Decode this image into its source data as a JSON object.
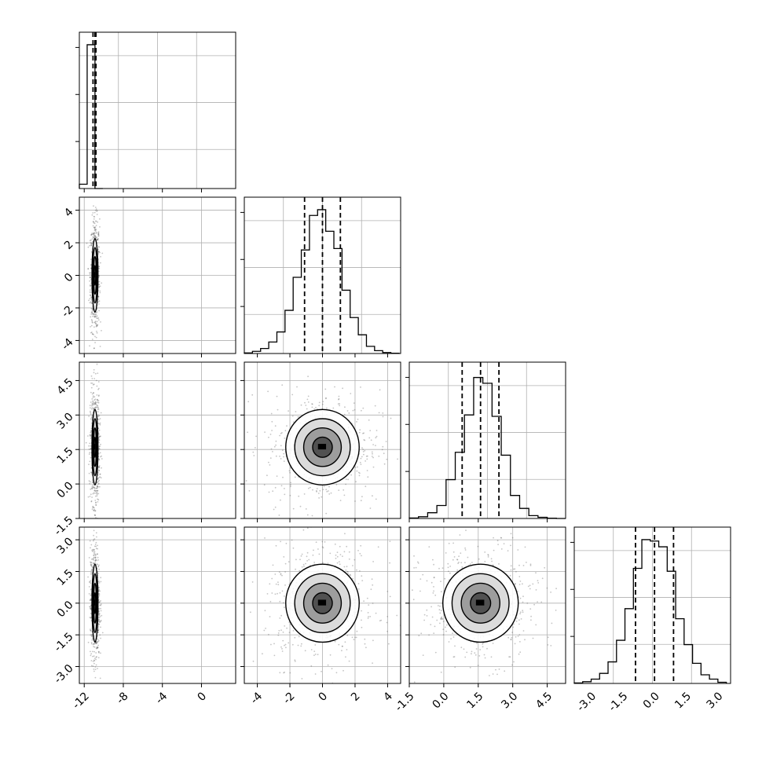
{
  "chart_data": {
    "type": "corner",
    "title": "",
    "parameters": 4,
    "axis_labels": [
      "",
      "",
      "",
      ""
    ],
    "ranges": [
      [
        -12.5,
        3.5
      ],
      [
        -4.8,
        4.8
      ],
      [
        -1.5,
        5.3
      ],
      [
        -3.8,
        3.6
      ]
    ],
    "x_ticks": [
      [
        "-12",
        "-8",
        "-4",
        "0"
      ],
      [
        "-4",
        "-2",
        "0",
        "2",
        "4"
      ],
      [
        "-1.5",
        "0.0",
        "1.5",
        "3.0",
        "4.5"
      ],
      [
        "-3.0",
        "-1.5",
        "0.0",
        "1.5",
        "3.0"
      ]
    ],
    "x_tick_values": [
      [
        -12,
        -8,
        -4,
        0
      ],
      [
        -4,
        -2,
        0,
        2,
        4
      ],
      [
        -1.5,
        0.0,
        1.5,
        3.0,
        4.5
      ],
      [
        -3.0,
        -1.5,
        0.0,
        1.5,
        3.0
      ]
    ],
    "y_ticks": [
      null,
      [
        "4",
        "2",
        "0",
        "-2",
        "-4"
      ],
      [
        "4.5",
        "3.0",
        "1.5",
        "0.0",
        "-1.5"
      ],
      [
        "3.0",
        "1.5",
        "0.0",
        "-1.5",
        "-3.0"
      ]
    ],
    "y_tick_values": [
      null,
      [
        4,
        2,
        0,
        -2,
        -4
      ],
      [
        4.5,
        3.0,
        1.5,
        0.0,
        -1.5
      ],
      [
        3.0,
        1.5,
        0.0,
        -1.5,
        -3.0
      ]
    ],
    "means": [
      -10.9,
      0.0,
      1.6,
      0.0
    ],
    "sigmas": [
      0.15,
      1.1,
      0.8,
      0.9
    ],
    "quantiles": [
      [
        -11.1,
        -10.9,
        -10.8
      ],
      [
        -1.1,
        0.0,
        1.1
      ],
      [
        0.8,
        1.6,
        2.4
      ],
      [
        -0.9,
        0.0,
        0.9
      ]
    ],
    "histograms": [
      {
        "bin_edges": [
          -12.5,
          -11.7,
          -10.9,
          -10.1
        ],
        "counts": [
          0.03,
          1.0,
          0.0
        ]
      },
      {
        "bin_edges": [
          -4.8,
          -4.3,
          -3.8,
          -3.3,
          -2.8,
          -2.3,
          -1.8,
          -1.3,
          -0.8,
          -0.3,
          0.2,
          0.7,
          1.2,
          1.7,
          2.2,
          2.7,
          3.2,
          3.7,
          4.2,
          4.7
        ],
        "counts": [
          0.004,
          0.015,
          0.035,
          0.08,
          0.15,
          0.3,
          0.53,
          0.72,
          0.96,
          1.0,
          0.85,
          0.73,
          0.44,
          0.25,
          0.13,
          0.05,
          0.02,
          0.007,
          0.002
        ]
      },
      {
        "bin_edges": [
          -1.5,
          -1.1,
          -0.7,
          -0.3,
          0.1,
          0.5,
          0.9,
          1.3,
          1.7,
          2.1,
          2.5,
          2.9,
          3.3,
          3.7,
          4.1,
          4.5,
          4.9,
          5.3
        ],
        "counts": [
          0.003,
          0.012,
          0.04,
          0.09,
          0.27,
          0.46,
          0.72,
          0.98,
          0.94,
          0.71,
          0.44,
          0.16,
          0.07,
          0.02,
          0.008,
          0.002,
          0.0
        ]
      },
      {
        "bin_edges": [
          -3.8,
          -3.4,
          -3.0,
          -2.6,
          -2.2,
          -1.8,
          -1.4,
          -1.0,
          -0.6,
          -0.2,
          0.2,
          0.6,
          1.0,
          1.4,
          1.8,
          2.2,
          2.6,
          3.0,
          3.4
        ],
        "counts": [
          0.003,
          0.012,
          0.03,
          0.07,
          0.15,
          0.3,
          0.52,
          0.8,
          1.0,
          0.99,
          0.95,
          0.78,
          0.45,
          0.27,
          0.14,
          0.06,
          0.03,
          0.008
        ]
      }
    ],
    "grid": true,
    "legend": "none"
  }
}
